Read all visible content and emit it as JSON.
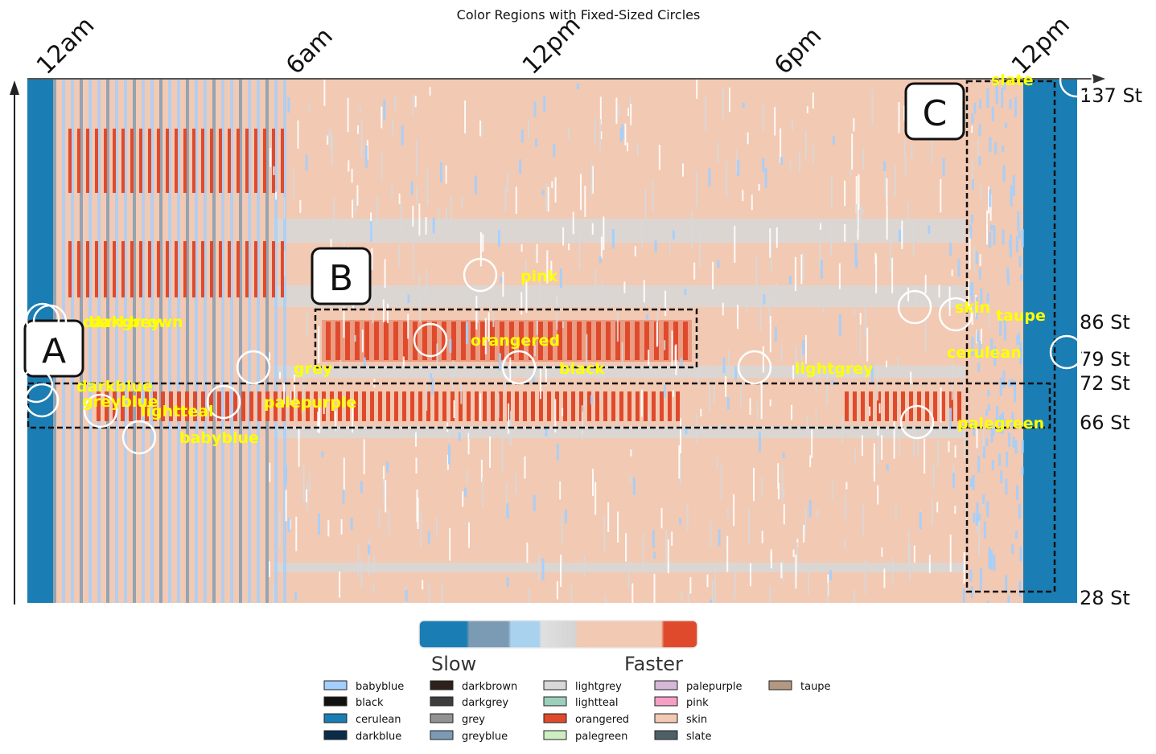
{
  "chart_data": {
    "type": "heatmap",
    "title": "Color Regions with Fixed-Sized Circles",
    "x_ticks": [
      "12am",
      "6am",
      "12pm",
      "6pm",
      "12pm"
    ],
    "y_ticks": [
      "137 St",
      "86 St",
      "79 St",
      "72 St",
      "66 St",
      "28 St"
    ],
    "callouts": [
      "A",
      "B",
      "C"
    ],
    "colorbar": {
      "low_label": "Slow",
      "high_label": "Faster"
    },
    "grid": false,
    "legend_placement": "bottom-center",
    "region_labels": [
      {
        "text": "darkgrey",
        "color_name": "darkgrey"
      },
      {
        "text": "darkbrown",
        "color_name": "darkbrown"
      },
      {
        "text": "pink",
        "color_name": "pink"
      },
      {
        "text": "orangered",
        "color_name": "orangered"
      },
      {
        "text": "grey",
        "color_name": "grey"
      },
      {
        "text": "black",
        "color_name": "black"
      },
      {
        "text": "lightgrey",
        "color_name": "lightgrey"
      },
      {
        "text": "darkblue",
        "color_name": "darkblue"
      },
      {
        "text": "greyblue",
        "color_name": "greyblue"
      },
      {
        "text": "lightteal",
        "color_name": "lightteal"
      },
      {
        "text": "palepurple",
        "color_name": "palepurple"
      },
      {
        "text": "babyblue",
        "color_name": "babyblue"
      },
      {
        "text": "slate",
        "color_name": "slate"
      },
      {
        "text": "skin",
        "color_name": "skin"
      },
      {
        "text": "taupe",
        "color_name": "taupe"
      },
      {
        "text": "cerulean",
        "color_name": "cerulean"
      },
      {
        "text": "palegreen",
        "color_name": "palegreen"
      }
    ],
    "legend": [
      {
        "name": "babyblue",
        "color": "#a2cffe"
      },
      {
        "name": "black",
        "color": "#111111"
      },
      {
        "name": "cerulean",
        "color": "#1a7db3"
      },
      {
        "name": "darkblue",
        "color": "#0b2b4a"
      },
      {
        "name": "darkbrown",
        "color": "#2e201b"
      },
      {
        "name": "darkgrey",
        "color": "#3d3d3d"
      },
      {
        "name": "grey",
        "color": "#929292"
      },
      {
        "name": "greyblue",
        "color": "#7b9bb5"
      },
      {
        "name": "lightgrey",
        "color": "#d8d8d8"
      },
      {
        "name": "lightteal",
        "color": "#9dd0bb"
      },
      {
        "name": "orangered",
        "color": "#e04a2c"
      },
      {
        "name": "palegreen",
        "color": "#cdeec0"
      },
      {
        "name": "palepurple",
        "color": "#d5b7d8"
      },
      {
        "name": "pink",
        "color": "#f59fc5"
      },
      {
        "name": "skin",
        "color": "#f2c9b3"
      },
      {
        "name": "slate",
        "color": "#4f5f68"
      },
      {
        "name": "taupe",
        "color": "#b39883"
      }
    ],
    "colors": {
      "cerulean": "#1a7db3",
      "skin": "#f2c9b3",
      "lightgrey": "#d8d8d8",
      "orangered": "#e04a2c",
      "babyblue": "#a2cffe",
      "greyblue": "#7b9bb5",
      "label_text": "#ffff00"
    }
  }
}
